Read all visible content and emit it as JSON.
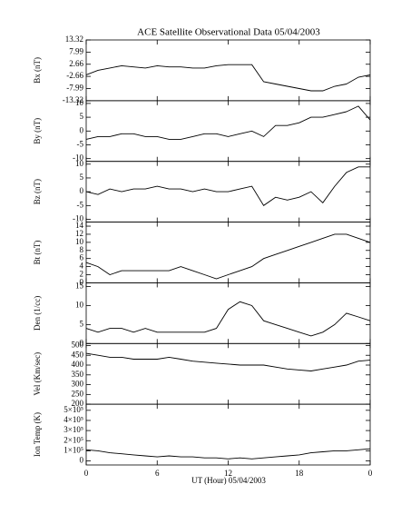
{
  "chart_data": {
    "title": "ACE Satellite Observational Data   05/04/2003",
    "xlabel": "UT (Hour)  05/04/2003",
    "xlim": [
      0,
      24
    ],
    "xticks": [
      0,
      6,
      12,
      18,
      {
        "value": 24,
        "label": "0"
      }
    ],
    "x": [
      0,
      1,
      2,
      3,
      4,
      5,
      6,
      7,
      8,
      9,
      10,
      11,
      12,
      13,
      14,
      15,
      16,
      17,
      18,
      19,
      20,
      21,
      22,
      23,
      24
    ],
    "panels": [
      {
        "type": "line",
        "ylabel": "Bx (nT)",
        "ylim": [
          -13.32,
          13.32
        ],
        "yticks": [
          13.32,
          7.99,
          2.66,
          -2.66,
          -7.99,
          -13.32
        ],
        "values": [
          -2,
          0,
          1,
          2,
          1.5,
          1,
          2,
          1.5,
          1.5,
          1,
          1,
          2,
          2.5,
          2.5,
          2.5,
          -5,
          -6,
          -7,
          -8,
          -9,
          -9,
          -7,
          -6,
          -3,
          -2
        ]
      },
      {
        "type": "line",
        "ylabel": "By (nT)",
        "ylim": [
          -11,
          11
        ],
        "yticks": [
          10,
          5,
          0,
          -5,
          -10
        ],
        "values": [
          -3,
          -2,
          -2,
          -1,
          -1,
          -2,
          -2,
          -3,
          -3,
          -2,
          -1,
          -1,
          -2,
          -1,
          0,
          -2,
          2,
          2,
          3,
          5,
          5,
          6,
          7,
          9,
          4
        ]
      },
      {
        "type": "line",
        "ylabel": "Bz (nT)",
        "ylim": [
          -11,
          11
        ],
        "yticks": [
          10,
          5,
          0,
          -5,
          -10
        ],
        "values": [
          0,
          -1,
          1,
          0,
          1,
          1,
          2,
          1,
          1,
          0,
          1,
          0,
          0,
          1,
          2,
          -5,
          -2,
          -3,
          -2,
          0,
          -4,
          2,
          7,
          9,
          9
        ]
      },
      {
        "type": "line",
        "ylabel": "Bt (nT)",
        "ylim": [
          0,
          15
        ],
        "yticks": [
          0,
          2,
          4,
          6,
          8,
          10,
          12,
          14
        ],
        "values": [
          5,
          4,
          2,
          3,
          3,
          3,
          3,
          3,
          4,
          3,
          2,
          1,
          2,
          3,
          4,
          6,
          7,
          8,
          9,
          10,
          11,
          12,
          12,
          11,
          10
        ]
      },
      {
        "type": "line",
        "ylabel": "Den (1/cc)",
        "ylim": [
          0,
          16
        ],
        "yticks": [
          0,
          5,
          10,
          15
        ],
        "values": [
          4,
          3,
          4,
          4,
          3,
          4,
          3,
          3,
          3,
          3,
          3,
          4,
          9,
          11,
          10,
          6,
          5,
          4,
          3,
          2,
          3,
          5,
          8,
          7,
          6
        ]
      },
      {
        "type": "line",
        "ylabel": "Vel (Km/sec)",
        "ylim": [
          200,
          510
        ],
        "yticks": [
          200,
          250,
          300,
          350,
          400,
          450,
          500
        ],
        "values": [
          460,
          450,
          440,
          440,
          430,
          430,
          430,
          440,
          430,
          420,
          415,
          410,
          405,
          400,
          400,
          400,
          390,
          380,
          375,
          370,
          380,
          390,
          400,
          420,
          425
        ]
      },
      {
        "type": "line",
        "ylabel": "Ion Temp (K)",
        "ylim": [
          -40000,
          560000
        ],
        "yticks": [
          0,
          {
            "value": 100000,
            "label": "1×10⁵"
          },
          {
            "value": 200000,
            "label": "2×10⁵"
          },
          {
            "value": 300000,
            "label": "3×10⁵"
          },
          {
            "value": 400000,
            "label": "4×10⁵"
          },
          {
            "value": 500000,
            "label": "5×10⁵"
          }
        ],
        "values": [
          110000,
          100000,
          80000,
          70000,
          60000,
          50000,
          40000,
          50000,
          40000,
          40000,
          30000,
          30000,
          20000,
          30000,
          20000,
          30000,
          40000,
          50000,
          60000,
          80000,
          90000,
          100000,
          100000,
          110000,
          120000
        ]
      }
    ]
  }
}
